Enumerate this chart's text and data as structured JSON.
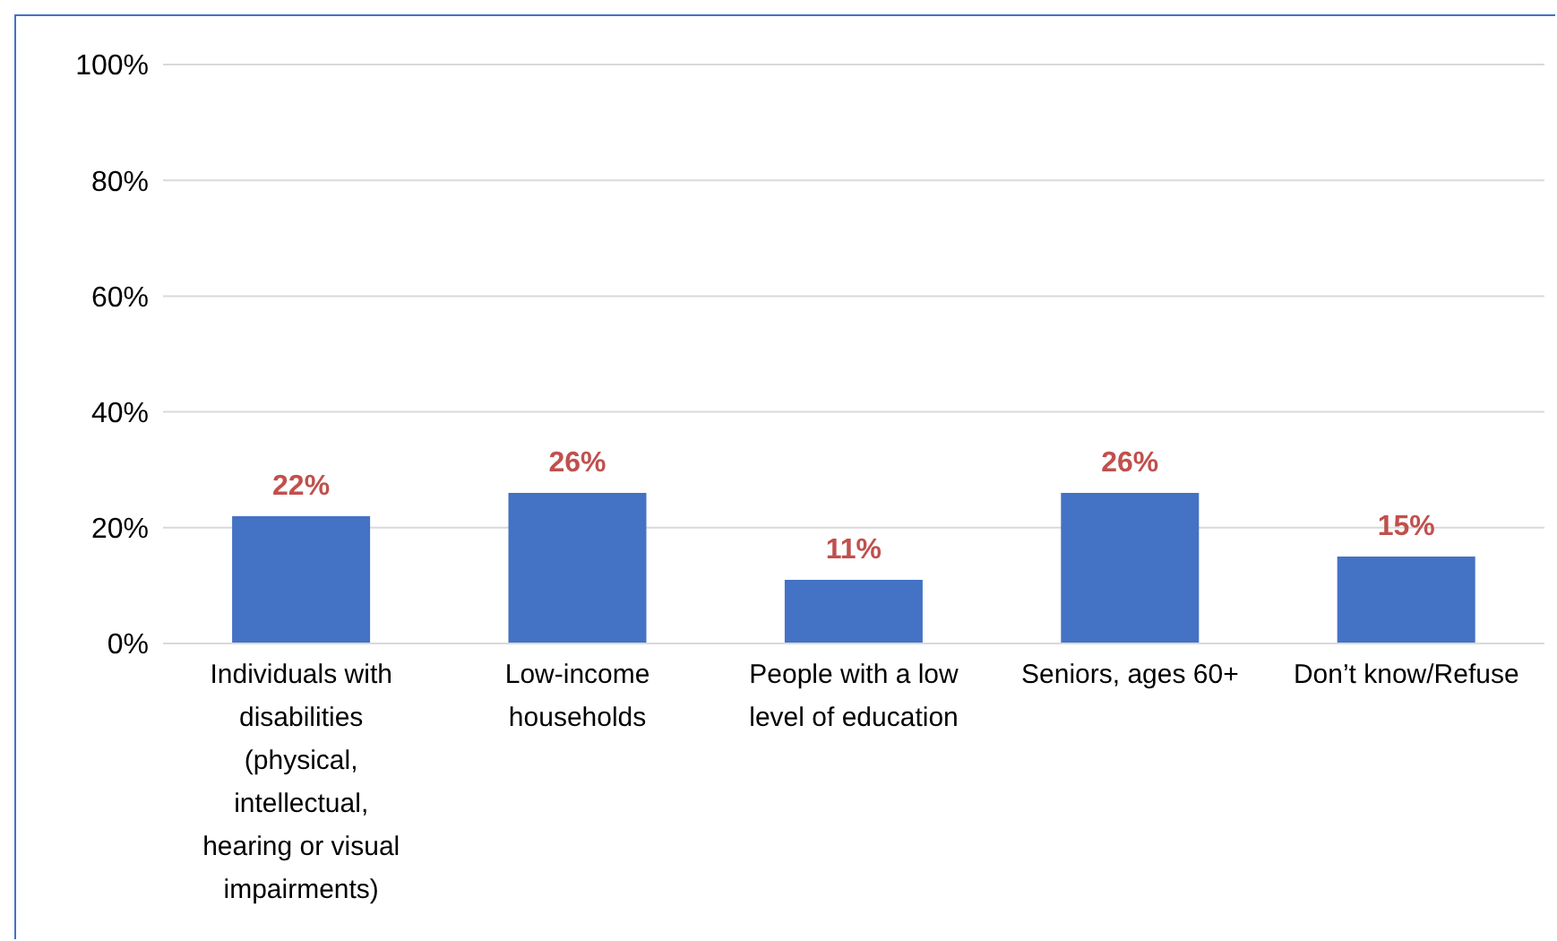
{
  "chart_data": {
    "type": "bar",
    "categories": [
      "Individuals with disabilities (physical, intellectual, hearing or visual impairments)",
      "Low-income households",
      "People with a low level of education",
      "Seniors, ages 60+",
      "Don’t know/Refuse"
    ],
    "values": [
      22,
      26,
      11,
      26,
      15
    ],
    "value_labels": [
      "22%",
      "26%",
      "11%",
      "26%",
      "15%"
    ],
    "color": "#4472c4",
    "ylim": [
      0,
      100
    ],
    "yticks": [
      {
        "value": 0,
        "label": "0%"
      },
      {
        "value": 20,
        "label": "20%"
      },
      {
        "value": 40,
        "label": "40%"
      },
      {
        "value": 60,
        "label": "60%"
      },
      {
        "value": 80,
        "label": "80%"
      },
      {
        "value": 100,
        "label": "100%"
      }
    ],
    "grid": "y"
  }
}
